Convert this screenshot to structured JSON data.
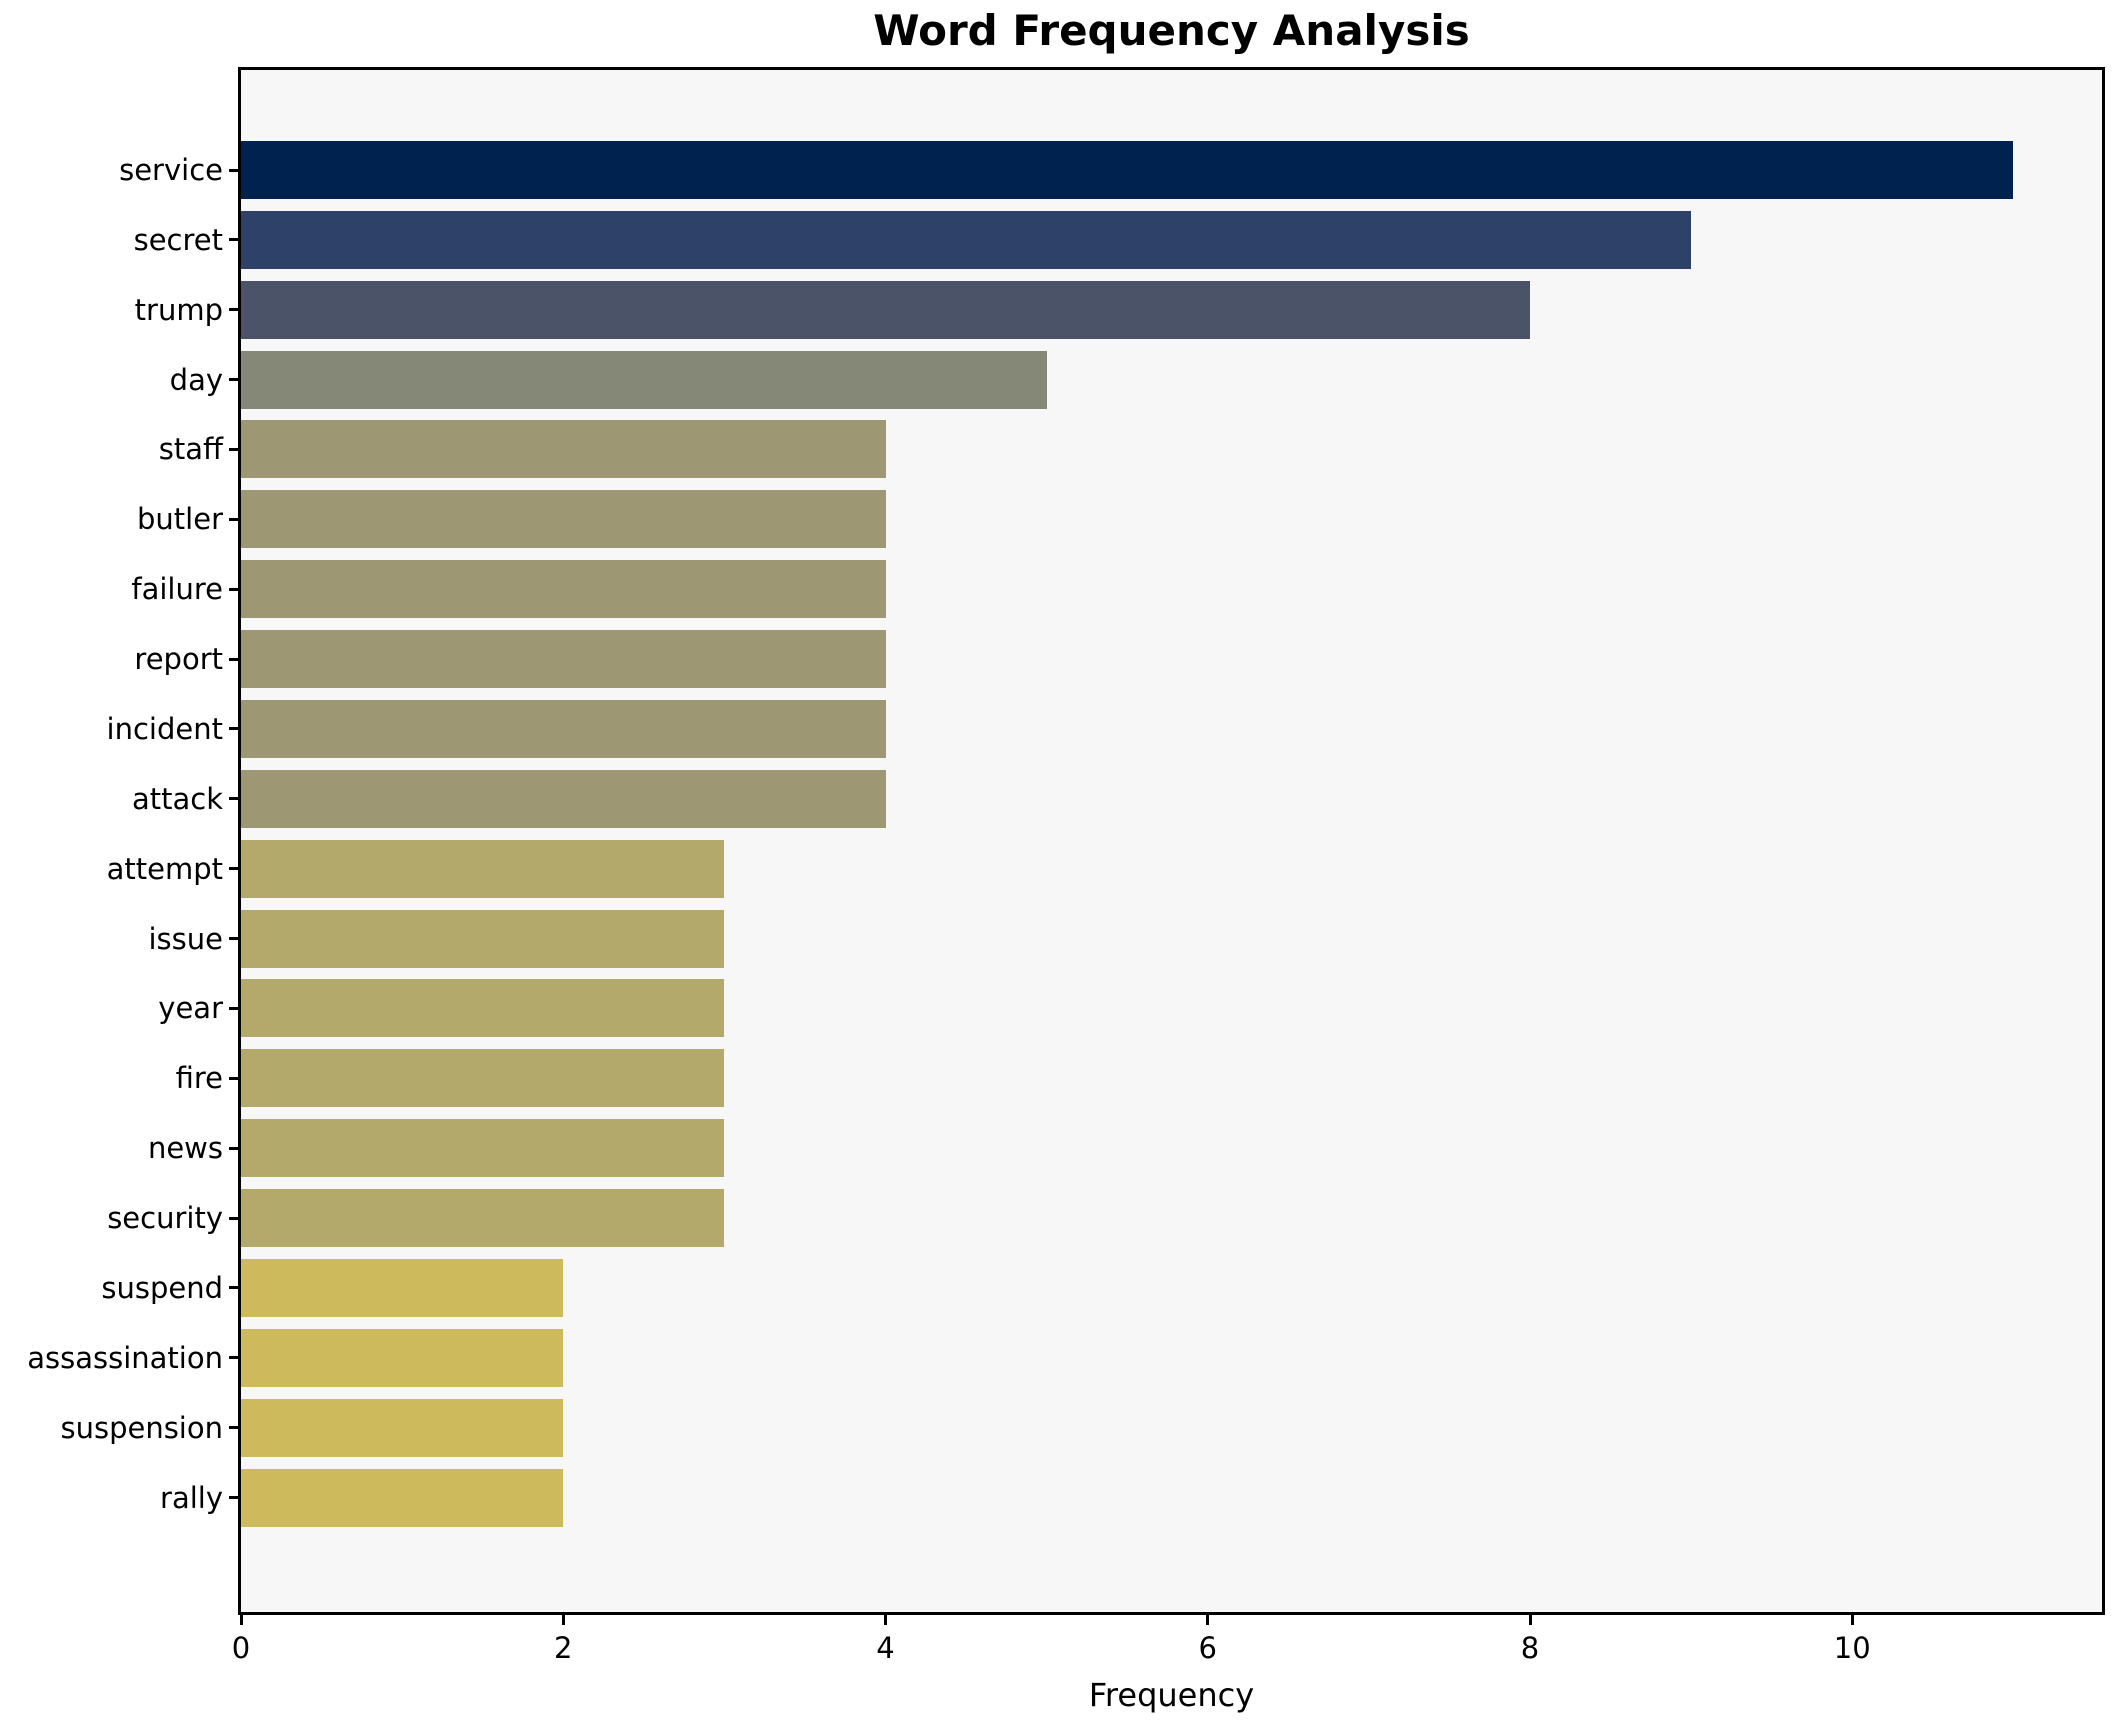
{
  "title": "Word Frequency Analysis",
  "xlabel": "Frequency",
  "chart_data": {
    "type": "bar",
    "orientation": "horizontal",
    "title": "Word Frequency Analysis",
    "xlabel": "Frequency",
    "ylabel": "",
    "xlim": [
      0,
      11.55
    ],
    "x_ticks": [
      "0",
      "2",
      "4",
      "6",
      "8",
      "10"
    ],
    "x_tick_values": [
      0,
      2,
      4,
      6,
      8,
      10
    ],
    "grid": false,
    "legend_position": "none",
    "categories": [
      "service",
      "secret",
      "trump",
      "day",
      "staff",
      "butler",
      "failure",
      "report",
      "incident",
      "attack",
      "attempt",
      "issue",
      "year",
      "fire",
      "news",
      "security",
      "suspend",
      "assassination",
      "suspension",
      "rally"
    ],
    "values": [
      11,
      9,
      8,
      5,
      4,
      4,
      4,
      4,
      4,
      4,
      3,
      3,
      3,
      3,
      3,
      3,
      2,
      2,
      2,
      2
    ],
    "bar_colors": [
      "#00224e",
      "#2e4269",
      "#4b5369",
      "#858877",
      "#9d9873",
      "#9d9873",
      "#9d9873",
      "#9d9873",
      "#9d9873",
      "#9d9873",
      "#b2a96a",
      "#b2a96a",
      "#b2a96a",
      "#b2a96a",
      "#b2a96a",
      "#b2a96a",
      "#ccba5c",
      "#ccba5c",
      "#ccba5c",
      "#ccba5c"
    ]
  },
  "colors": {
    "figure_bg": "#ffffff",
    "plot_bg": "#f7f7f8",
    "spine": "#000000",
    "text": "#000000"
  }
}
